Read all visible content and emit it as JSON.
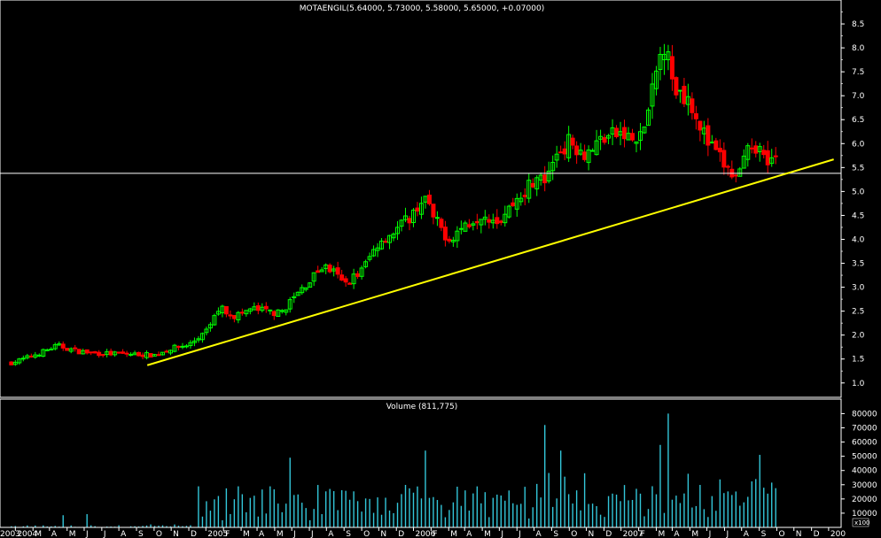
{
  "price_panel": {
    "title": "MOTAENGIL(5.64000, 5.73000, 5.58000, 5.65000, +0.07000)"
  },
  "volume_panel": {
    "title": "Volume (811,775)",
    "unit_label": "x100"
  },
  "colors": {
    "background": "#000000",
    "up_candle": "#00ff00",
    "down_candle": "#ff0000",
    "trendline": "#ffff00",
    "support_line": "#ffffff",
    "volume_bar": "#33c6d9",
    "axis": "#ffffff"
  },
  "chart_data": [
    {
      "type": "candlestick",
      "title": "MOTAENGIL(5.64000, 5.73000, 5.58000, 5.65000, +0.07000)",
      "ylim": [
        0.7,
        9.0
      ],
      "yticks": [
        "1.0",
        "1.5",
        "2.0",
        "2.5",
        "3.0",
        "3.5",
        "4.0",
        "4.5",
        "5.0",
        "5.5",
        "6.0",
        "6.5",
        "7.0",
        "7.5",
        "8.0",
        "8.5"
      ],
      "x_ticks": [
        "2003",
        "2004",
        "M",
        "A",
        "M",
        "J",
        "J",
        "A",
        "S",
        "O",
        "N",
        "D",
        "2005",
        "F",
        "M",
        "A",
        "M",
        "J",
        "J",
        "A",
        "S",
        "O",
        "N",
        "D",
        "2006",
        "F",
        "M",
        "A",
        "M",
        "J",
        "J",
        "A",
        "S",
        "O",
        "N",
        "D",
        "2007",
        "F",
        "M",
        "A",
        "M",
        "J",
        "J",
        "A",
        "S",
        "O",
        "N",
        "D",
        "200"
      ],
      "horizontal_line": 5.38,
      "trendline": {
        "start": [
          "2004-08-20",
          1.37
        ],
        "end": [
          "2007-12-10",
          5.67
        ]
      },
      "last": {
        "open": 5.64,
        "high": 5.73,
        "low": 5.58,
        "close": 5.65,
        "change": 0.07
      },
      "anchors": [
        [
          "2003-12-25",
          1.42
        ],
        [
          "2004-01-20",
          1.52
        ],
        [
          "2004-02-20",
          1.66
        ],
        [
          "2004-03-15",
          1.78
        ],
        [
          "2004-04-20",
          1.66
        ],
        [
          "2004-05-20",
          1.62
        ],
        [
          "2004-06-20",
          1.61
        ],
        [
          "2004-08-01",
          1.6
        ],
        [
          "2004-09-01",
          1.58
        ],
        [
          "2004-10-01",
          1.72
        ],
        [
          "2004-11-01",
          1.8
        ],
        [
          "2004-12-01",
          2.05
        ],
        [
          "2004-12-25",
          2.58
        ],
        [
          "2005-01-20",
          2.4
        ],
        [
          "2005-02-20",
          2.55
        ],
        [
          "2005-03-20",
          2.5
        ],
        [
          "2005-04-10",
          2.45
        ],
        [
          "2005-05-10",
          2.85
        ],
        [
          "2005-06-10",
          3.25
        ],
        [
          "2005-06-25",
          3.45
        ],
        [
          "2005-07-15",
          3.3
        ],
        [
          "2005-08-01",
          3.05
        ],
        [
          "2005-09-01",
          3.35
        ],
        [
          "2005-10-01",
          3.95
        ],
        [
          "2005-11-01",
          4.2
        ],
        [
          "2005-12-01",
          4.55
        ],
        [
          "2005-12-20",
          4.9
        ],
        [
          "2006-01-05",
          4.45
        ],
        [
          "2006-02-01",
          4.0
        ],
        [
          "2006-03-01",
          4.3
        ],
        [
          "2006-04-01",
          4.55
        ],
        [
          "2006-05-01",
          4.4
        ],
        [
          "2006-06-01",
          4.85
        ],
        [
          "2006-07-01",
          5.25
        ],
        [
          "2006-07-25",
          5.2
        ],
        [
          "2006-08-10",
          5.8
        ],
        [
          "2006-09-01",
          6.05
        ],
        [
          "2006-10-01",
          5.8
        ],
        [
          "2006-11-01",
          6.15
        ],
        [
          "2006-12-01",
          6.2
        ],
        [
          "2007-01-01",
          6.0
        ],
        [
          "2007-01-20",
          6.75
        ],
        [
          "2007-02-05",
          7.7
        ],
        [
          "2007-02-20",
          8.3
        ],
        [
          "2007-03-01",
          7.2
        ],
        [
          "2007-04-01",
          6.95
        ],
        [
          "2007-05-01",
          6.05
        ],
        [
          "2007-06-01",
          5.55
        ],
        [
          "2007-06-20",
          5.25
        ],
        [
          "2007-07-01",
          5.45
        ],
        [
          "2007-07-20",
          6.05
        ],
        [
          "2007-08-10",
          5.75
        ],
        [
          "2007-09-01",
          5.65
        ]
      ]
    },
    {
      "type": "bar",
      "title": "Volume (811,775)",
      "unit": "x100",
      "ylim": [
        0,
        84000
      ],
      "yticks": [
        "10000",
        "20000",
        "30000",
        "40000",
        "50000",
        "60000",
        "70000",
        "80000"
      ],
      "highlights": [
        {
          "date": "2005-12-20",
          "value": 54000
        },
        {
          "date": "2006-07-20",
          "value": 72000
        },
        {
          "date": "2006-08-20",
          "value": 54000
        },
        {
          "date": "2007-02-05",
          "value": 58000
        },
        {
          "date": "2007-02-20",
          "value": 80000
        },
        {
          "date": "2007-08-01",
          "value": 51000
        },
        {
          "date": "2005-05-01",
          "value": 49000
        }
      ]
    }
  ]
}
